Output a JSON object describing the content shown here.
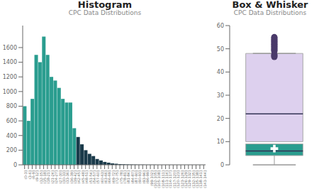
{
  "chart_data": [
    {
      "type": "bar",
      "title": "Histogram",
      "subtitle": "CPC Data Distributions",
      "categories": [
        "(0-3]",
        "(3-6]",
        "(6-9]",
        "(9-12]",
        "(12-15]",
        "(15-18]",
        "(18-21]",
        "(21-24]",
        "(24-27]",
        "(27-30]",
        "(30-33]",
        "(33-36]",
        "(36-39]",
        "(39-42]",
        "(42-45]",
        "(45-48]",
        "(48-51]",
        "(51-54]",
        "(54-57]",
        "(57-60]",
        "(60-63]",
        "(63-66]",
        "(66-69]",
        "(69-72]",
        "(72-75]",
        "(75-78]",
        "(78-81]",
        "(81-84]",
        "(84-87]",
        "(87-90]",
        "(90-93]",
        "(93-96]",
        "(96-99]",
        "(99-102]",
        "(102-105]",
        "(105-108]",
        "(108-111]",
        "(111-114]",
        "(114-117]",
        "(117-120]",
        "(120-123]",
        "(123-126]",
        "(126-129]",
        "(129-132]",
        "(132-135]",
        "(135-138]",
        "(138-141]",
        "(141-144]"
      ],
      "values": [
        800,
        600,
        900,
        1500,
        1400,
        1750,
        1500,
        1200,
        1150,
        1050,
        900,
        850,
        850,
        500,
        380,
        280,
        200,
        150,
        120,
        80,
        60,
        40,
        30,
        20,
        15,
        10,
        8,
        6,
        5,
        4,
        3,
        3,
        2,
        2,
        2,
        1,
        1,
        1,
        1,
        1,
        1,
        1,
        1,
        1,
        1,
        1,
        1,
        1
      ],
      "colors": [
        "#2a9d8f",
        "#2a9d8f",
        "#2a9d8f",
        "#2a9d8f",
        "#2a9d8f",
        "#2a9d8f",
        "#2a9d8f",
        "#2a9d8f",
        "#2a9d8f",
        "#2a9d8f",
        "#2a9d8f",
        "#2a9d8f",
        "#2a9d8f",
        "#2a9d8f",
        "#1a3a4a",
        "#1a3a4a",
        "#1a3a4a",
        "#1a3a4a",
        "#1a3a4a",
        "#1a3a4a",
        "#1a3a4a",
        "#1a3a4a",
        "#1a3a4a",
        "#1a3a4a",
        "#1a3a4a",
        "#1a3a4a",
        "#1a3a4a",
        "#1a3a4a",
        "#1a3a4a",
        "#1a3a4a",
        "#1a3a4a",
        "#1a3a4a",
        "#1a3a4a",
        "#1a3a4a",
        "#1a3a4a",
        "#1a3a4a",
        "#1a3a4a",
        "#1a3a4a",
        "#1a3a4a",
        "#1a3a4a",
        "#1a3a4a",
        "#1a3a4a",
        "#1a3a4a",
        "#1a3a4a",
        "#1a3a4a",
        "#1a3a4a",
        "#1a3a4a",
        "#1a3a4a"
      ],
      "ylim": [
        0,
        1900
      ],
      "yticks": [
        0,
        200,
        400,
        600,
        800,
        1000,
        1200,
        1400,
        1600
      ],
      "grid": false
    },
    {
      "type": "box",
      "title": "Box & Whisker",
      "subtitle": "CPC Data Distributions",
      "boxes": [
        {
          "q1": 10,
          "q3": 48,
          "median": 22,
          "whisker_high": 48,
          "outliers": [
            49,
            49.5,
            50,
            50.5,
            51,
            51.5,
            52,
            52.5,
            53,
            53.5,
            54,
            54.5,
            55,
            47.5,
            47,
            46.5
          ],
          "color": "#ddd0ee"
        },
        {
          "q1": 4,
          "q3": 9,
          "median": 6,
          "mean": 7,
          "whisker_low": 0,
          "color": "#2a9d8f"
        }
      ],
      "ylim": [
        0,
        60
      ],
      "yticks": [
        0,
        10,
        20,
        30,
        40,
        50,
        60
      ],
      "grid": false,
      "tick_labels": "y"
    }
  ]
}
